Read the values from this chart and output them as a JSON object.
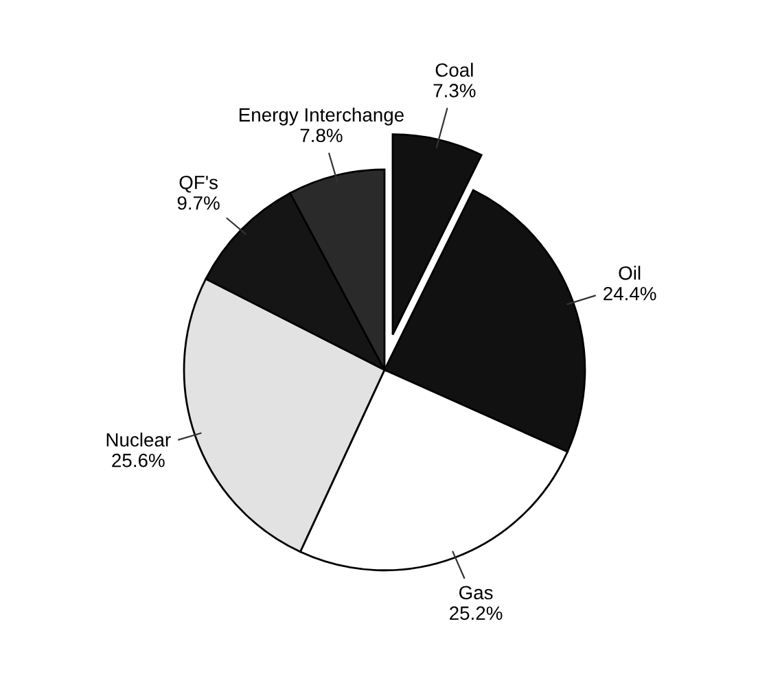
{
  "chart_data": {
    "type": "pie",
    "categories": [
      "Coal",
      "Oil",
      "Gas",
      "Nuclear",
      "QF's",
      "Energy Interchange"
    ],
    "values": [
      7.3,
      24.4,
      25.2,
      25.6,
      9.7,
      7.8
    ],
    "colors": [
      "#111111",
      "#111111",
      "#ffffff",
      "#e2e2e2",
      "#151515",
      "#2a2a2a"
    ],
    "value_labels": [
      "7.3%",
      "24.4%",
      "25.2%",
      "25.6%",
      "9.7%",
      "7.8%"
    ],
    "legend": false
  }
}
